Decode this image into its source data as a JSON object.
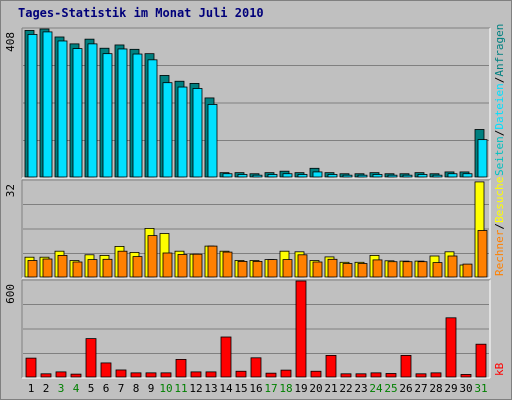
{
  "title": "Tages-Statistik im Monat Juli 2010",
  "colors": {
    "anfragen": "#008080",
    "dateien": "#00e0ff",
    "seiten": "#00c0c0",
    "besuche": "#ffff00",
    "rechner": "#ff8000",
    "kb": "#ff0000",
    "weekday_label": "#000000",
    "weekend_label": "#008000"
  },
  "chart_data": [
    {
      "type": "bar",
      "panel": "requests",
      "y_tick_max": "408",
      "ylim": [
        0,
        408
      ],
      "x": [
        1,
        2,
        3,
        4,
        5,
        6,
        7,
        8,
        9,
        10,
        11,
        12,
        13,
        14,
        15,
        16,
        17,
        18,
        19,
        20,
        21,
        22,
        23,
        24,
        25,
        26,
        27,
        28,
        29,
        30,
        31
      ],
      "series": [
        {
          "name": "Anfragen",
          "values": [
            404,
            413,
            386,
            367,
            380,
            355,
            364,
            352,
            340,
            280,
            264,
            258,
            218,
            12,
            12,
            9,
            12,
            16,
            12,
            24,
            12,
            9,
            9,
            12,
            9,
            9,
            12,
            9,
            14,
            14,
            131
          ]
        },
        {
          "name": "Dateien",
          "values": [
            393,
            400,
            375,
            354,
            367,
            340,
            353,
            339,
            323,
            260,
            248,
            244,
            200,
            9,
            7,
            5,
            7,
            9,
            7,
            14,
            7,
            5,
            5,
            7,
            5,
            5,
            7,
            5,
            9,
            9,
            103
          ]
        }
      ],
      "right_labels": [
        "Anfragen",
        "/",
        "Dateien",
        "/",
        "Seiten"
      ]
    },
    {
      "type": "bar",
      "panel": "visits",
      "y_tick_max": "32",
      "ylim": [
        0,
        32
      ],
      "x": [
        1,
        2,
        3,
        4,
        5,
        6,
        7,
        8,
        9,
        10,
        11,
        12,
        13,
        14,
        15,
        16,
        17,
        18,
        19,
        20,
        21,
        22,
        23,
        24,
        25,
        26,
        27,
        28,
        29,
        30,
        31
      ],
      "series": [
        {
          "name": "Besuche",
          "values": [
            6.6,
            6.6,
            8.6,
            5.5,
            7.4,
            7.2,
            10.2,
            8.2,
            16.2,
            14.5,
            8.6,
            7.6,
            10.3,
            8.6,
            5.5,
            5.5,
            5.8,
            8.6,
            8.4,
            5.5,
            6.7,
            4.9,
            4.9,
            7.2,
            5.4,
            5.3,
            5.3,
            7.0,
            8.4,
            4.0,
            31.7
          ]
        },
        {
          "name": "Rechner",
          "values": [
            5.5,
            6.0,
            7.2,
            5.0,
            5.8,
            5.9,
            8.6,
            6.8,
            13.8,
            8.0,
            7.5,
            7.6,
            10.3,
            8.3,
            5.2,
            5.2,
            5.8,
            5.8,
            7.4,
            5.0,
            5.9,
            4.5,
            4.5,
            5.7,
            5.1,
            5.1,
            5.1,
            4.8,
            7.0,
            4.3,
            15.5
          ]
        }
      ],
      "right_labels": [
        "Besuche",
        "/",
        "Rechner"
      ]
    },
    {
      "type": "bar",
      "panel": "traffic",
      "y_tick_max": "600",
      "ylim": [
        0,
        600
      ],
      "x": [
        1,
        2,
        3,
        4,
        5,
        6,
        7,
        8,
        9,
        10,
        11,
        12,
        13,
        14,
        15,
        16,
        17,
        18,
        19,
        20,
        21,
        22,
        23,
        24,
        25,
        26,
        27,
        28,
        29,
        30,
        31
      ],
      "series": [
        {
          "name": "kB",
          "values": [
            118,
            20,
            32,
            18,
            240,
            88,
            44,
            26,
            26,
            26,
            110,
            32,
            32,
            250,
            36,
            120,
            24,
            43,
            605,
            36,
            135,
            20,
            20,
            26,
            22,
            135,
            20,
            26,
            370,
            16,
            205
          ]
        }
      ],
      "right_labels": [
        "kB"
      ]
    }
  ],
  "x_labels": [
    {
      "text": "1",
      "weekend": false
    },
    {
      "text": "2",
      "weekend": false
    },
    {
      "text": "3",
      "weekend": true
    },
    {
      "text": "4",
      "weekend": true
    },
    {
      "text": "5",
      "weekend": false
    },
    {
      "text": "6",
      "weekend": false
    },
    {
      "text": "7",
      "weekend": false
    },
    {
      "text": "8",
      "weekend": false
    },
    {
      "text": "9",
      "weekend": false
    },
    {
      "text": "10",
      "weekend": true
    },
    {
      "text": "11",
      "weekend": true
    },
    {
      "text": "12",
      "weekend": false
    },
    {
      "text": "13",
      "weekend": false
    },
    {
      "text": "14",
      "weekend": false
    },
    {
      "text": "15",
      "weekend": false
    },
    {
      "text": "16",
      "weekend": false
    },
    {
      "text": "17",
      "weekend": true
    },
    {
      "text": "18",
      "weekend": true
    },
    {
      "text": "19",
      "weekend": false
    },
    {
      "text": "20",
      "weekend": false
    },
    {
      "text": "21",
      "weekend": false
    },
    {
      "text": "22",
      "weekend": false
    },
    {
      "text": "23",
      "weekend": false
    },
    {
      "text": "24",
      "weekend": true
    },
    {
      "text": "25",
      "weekend": true
    },
    {
      "text": "26",
      "weekend": false
    },
    {
      "text": "27",
      "weekend": false
    },
    {
      "text": "28",
      "weekend": false
    },
    {
      "text": "29",
      "weekend": false
    },
    {
      "text": "30",
      "weekend": false
    },
    {
      "text": "31",
      "weekend": true
    }
  ]
}
